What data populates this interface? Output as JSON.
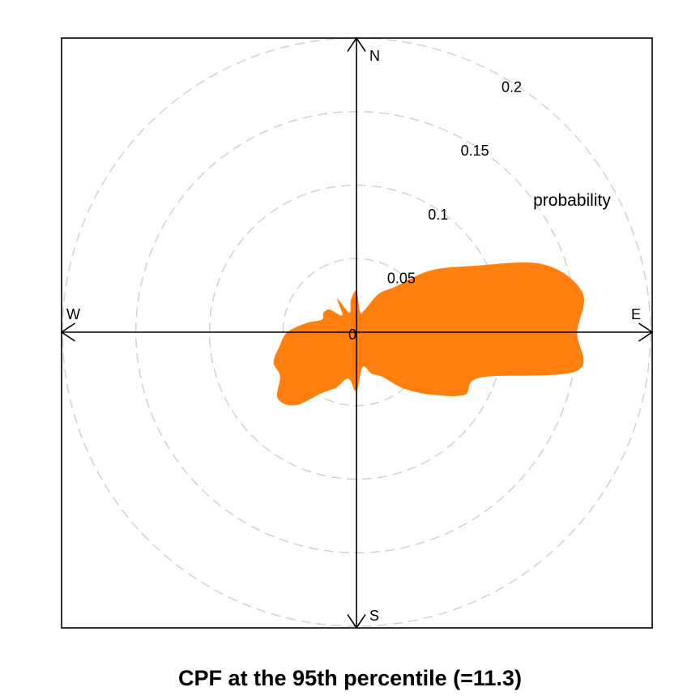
{
  "chart_data": {
    "type": "polar-area",
    "title": "CPF at the 95th percentile (=11.3)",
    "radial_label": "probability",
    "radial_ticks": [
      "0",
      "0.05",
      "0.1",
      "0.15",
      "0.2"
    ],
    "radial_tick_values": [
      0,
      0.05,
      0.1,
      0.15,
      0.2
    ],
    "rmax": 0.2,
    "directions": {
      "north": "N",
      "east": "E",
      "south": "S",
      "west": "W"
    },
    "grid": "dashed circles",
    "series": [
      {
        "fill_color": "#FF7F0E",
        "angles_deg": [
          0,
          10,
          20,
          30,
          40,
          50,
          60,
          70,
          80,
          90,
          100,
          110,
          120,
          130,
          140,
          150,
          160,
          170,
          180,
          190,
          200,
          210,
          220,
          230,
          240,
          250,
          260,
          270,
          280,
          290,
          300,
          310,
          320,
          330,
          340,
          350
        ],
        "values": [
          0.028,
          0.014,
          0.016,
          0.03,
          0.04,
          0.065,
          0.09,
          0.135,
          0.156,
          0.15,
          0.152,
          0.09,
          0.085,
          0.066,
          0.05,
          0.035,
          0.03,
          0.024,
          0.04,
          0.032,
          0.04,
          0.048,
          0.065,
          0.07,
          0.06,
          0.06,
          0.053,
          0.047,
          0.035,
          0.025,
          0.026,
          0.024,
          0.015,
          0.026,
          0.014,
          0.022
        ]
      }
    ]
  },
  "colors": {
    "fill": "#FF7F0E",
    "grid": "#D3D3D3",
    "axis": "#000000"
  }
}
